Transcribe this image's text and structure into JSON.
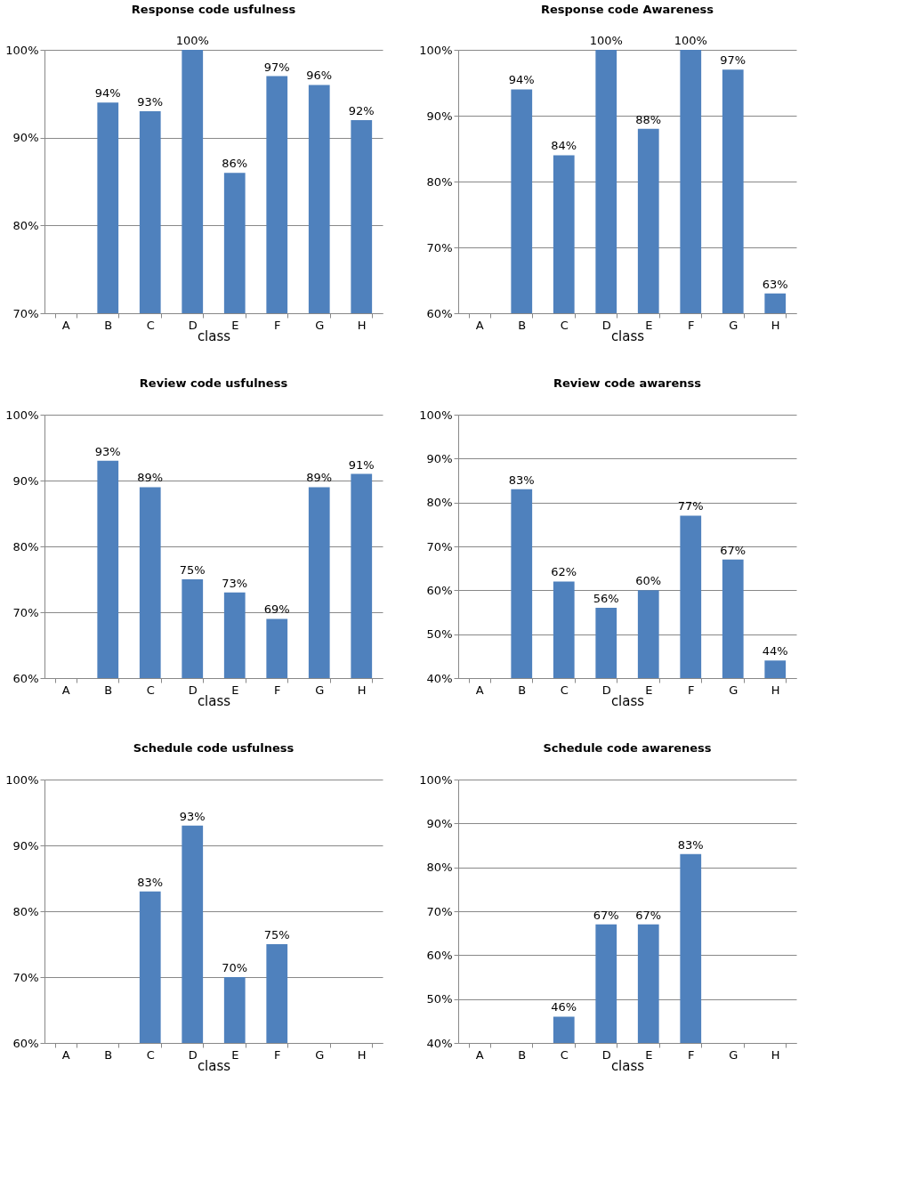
{
  "chart_data": [
    {
      "type": "bar",
      "title": "Response code usfulness",
      "xlabel": "class",
      "categories": [
        "A",
        "B",
        "C",
        "D",
        "E",
        "F",
        "G",
        "H"
      ],
      "values": [
        null,
        94,
        93,
        100,
        86,
        97,
        96,
        92
      ],
      "value_labels": [
        null,
        "94%",
        "93%",
        "100%",
        "86%",
        "97%",
        "96%",
        "92%"
      ],
      "color": "#4f81bd",
      "ylim": [
        70,
        100
      ],
      "yticks": [
        {
          "value": 70,
          "label": "70%"
        },
        {
          "value": 80,
          "label": "80%"
        },
        {
          "value": 90,
          "label": "90%"
        },
        {
          "value": 100,
          "label": "100%"
        }
      ],
      "grid": "y"
    },
    {
      "type": "bar",
      "title": "Response code Awareness",
      "xlabel": "class",
      "categories": [
        "A",
        "B",
        "C",
        "D",
        "E",
        "F",
        "G",
        "H"
      ],
      "values": [
        null,
        94,
        84,
        100,
        88,
        100,
        97,
        63
      ],
      "value_labels": [
        null,
        "94%",
        "84%",
        "100%",
        "88%",
        "100%",
        "97%",
        "63%"
      ],
      "color": "#4f81bd",
      "ylim": [
        60,
        100
      ],
      "yticks": [
        {
          "value": 60,
          "label": "60%"
        },
        {
          "value": 70,
          "label": "70%"
        },
        {
          "value": 80,
          "label": "80%"
        },
        {
          "value": 90,
          "label": "90%"
        },
        {
          "value": 100,
          "label": "100%"
        }
      ],
      "grid": "y"
    },
    {
      "type": "bar",
      "title": "Review code usfulness",
      "xlabel": "class",
      "categories": [
        "A",
        "B",
        "C",
        "D",
        "E",
        "F",
        "G",
        "H"
      ],
      "values": [
        null,
        93,
        89,
        75,
        73,
        69,
        89,
        91
      ],
      "value_labels": [
        null,
        "93%",
        "89%",
        "75%",
        "73%",
        "69%",
        "89%",
        "91%"
      ],
      "color": "#4f81bd",
      "ylim": [
        60,
        100
      ],
      "yticks": [
        {
          "value": 60,
          "label": "60%"
        },
        {
          "value": 70,
          "label": "70%"
        },
        {
          "value": 80,
          "label": "80%"
        },
        {
          "value": 90,
          "label": "90%"
        },
        {
          "value": 100,
          "label": "100%"
        }
      ],
      "grid": "y"
    },
    {
      "type": "bar",
      "title": "Review code awarenss",
      "xlabel": "class",
      "categories": [
        "A",
        "B",
        "C",
        "D",
        "E",
        "F",
        "G",
        "H"
      ],
      "values": [
        null,
        83,
        62,
        56,
        60,
        77,
        67,
        44
      ],
      "value_labels": [
        null,
        "83%",
        "62%",
        "56%",
        "60%",
        "77%",
        "67%",
        "44%"
      ],
      "color": "#4f81bd",
      "ylim": [
        40,
        100
      ],
      "yticks": [
        {
          "value": 40,
          "label": "40%"
        },
        {
          "value": 50,
          "label": "50%"
        },
        {
          "value": 60,
          "label": "60%"
        },
        {
          "value": 70,
          "label": "70%"
        },
        {
          "value": 80,
          "label": "80%"
        },
        {
          "value": 90,
          "label": "90%"
        },
        {
          "value": 100,
          "label": "100%"
        }
      ],
      "grid": "y"
    },
    {
      "type": "bar",
      "title": "Schedule code usfulness",
      "xlabel": "class",
      "categories": [
        "A",
        "B",
        "C",
        "D",
        "E",
        "F",
        "G",
        "H"
      ],
      "values": [
        null,
        null,
        83,
        93,
        70,
        75,
        null,
        null
      ],
      "value_labels": [
        null,
        null,
        "83%",
        "93%",
        "70%",
        "75%",
        null,
        null
      ],
      "color": "#4f81bd",
      "ylim": [
        60,
        100
      ],
      "yticks": [
        {
          "value": 60,
          "label": "60%"
        },
        {
          "value": 70,
          "label": "70%"
        },
        {
          "value": 80,
          "label": "80%"
        },
        {
          "value": 90,
          "label": "90%"
        },
        {
          "value": 100,
          "label": "100%"
        }
      ],
      "grid": "y"
    },
    {
      "type": "bar",
      "title": "Schedule code awareness",
      "xlabel": "class",
      "categories": [
        "A",
        "B",
        "C",
        "D",
        "E",
        "F",
        "G",
        "H"
      ],
      "values": [
        null,
        null,
        46,
        67,
        67,
        83,
        null,
        null
      ],
      "value_labels": [
        null,
        null,
        "46%",
        "67%",
        "67%",
        "83%",
        null,
        null
      ],
      "color": "#4f81bd",
      "ylim": [
        40,
        100
      ],
      "yticks": [
        {
          "value": 40,
          "label": "40%"
        },
        {
          "value": 50,
          "label": "50%"
        },
        {
          "value": 60,
          "label": "60%"
        },
        {
          "value": 70,
          "label": "70%"
        },
        {
          "value": 80,
          "label": "80%"
        },
        {
          "value": 90,
          "label": "90%"
        },
        {
          "value": 100,
          "label": "100%"
        }
      ],
      "grid": "y"
    }
  ]
}
